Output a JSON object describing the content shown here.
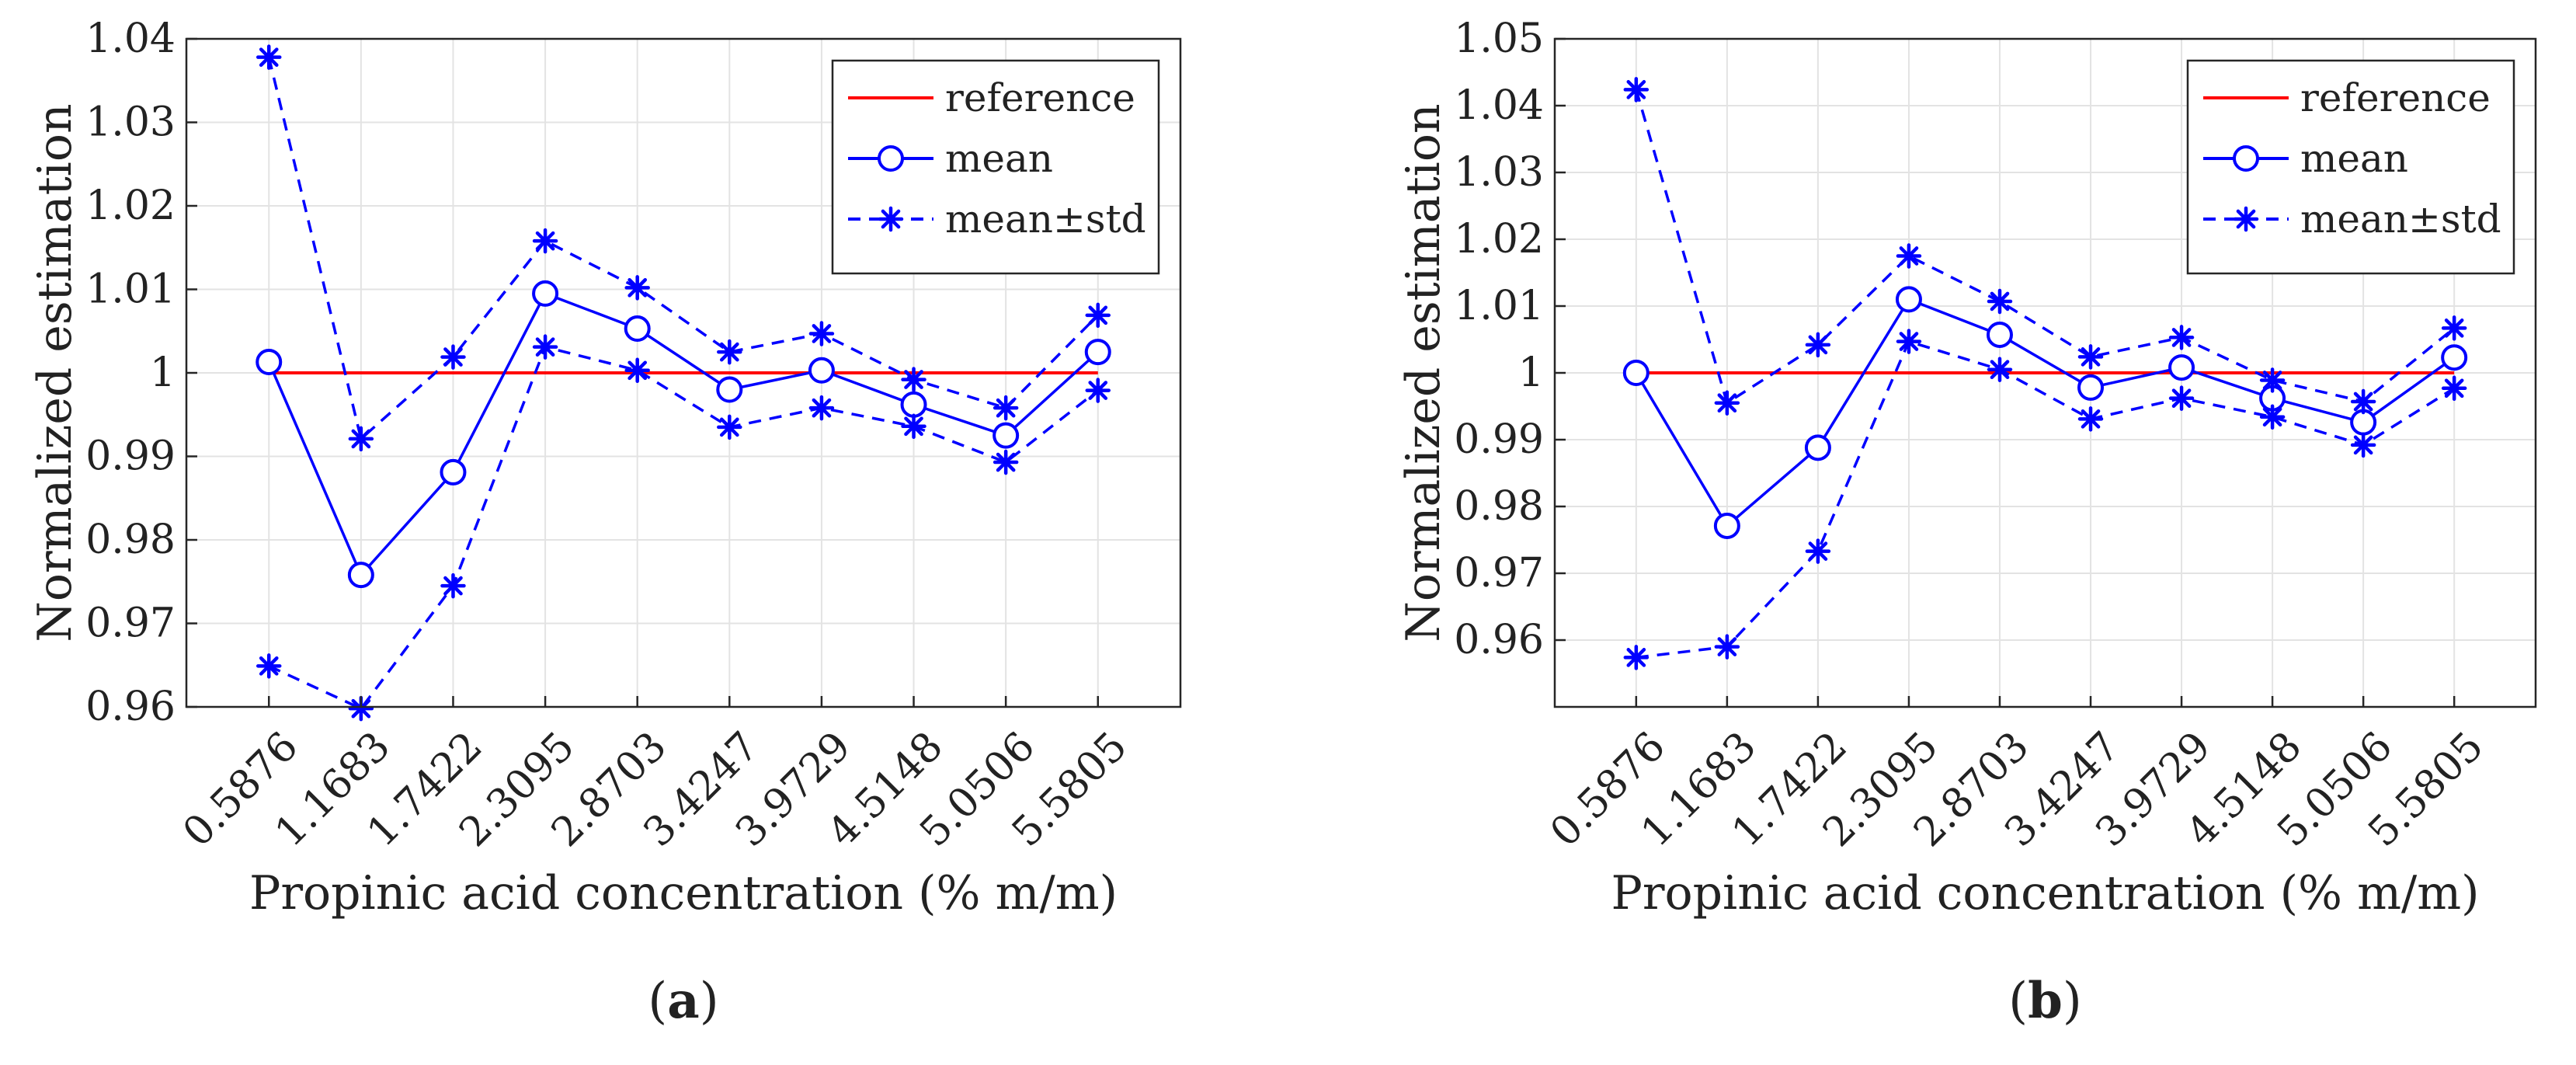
{
  "chart_data": [
    {
      "type": "line",
      "panel_label": "a",
      "panel_tag_prefix": "(",
      "panel_tag_suffix": ")",
      "xlabel": "Propinic acid concentration (% m/m)",
      "ylabel": "Normalized estimation",
      "categories": [
        "0.5876",
        "1.1683",
        "1.7422",
        "2.3095",
        "2.8703",
        "3.4247",
        "3.9729",
        "4.5148",
        "5.0506",
        "5.5805"
      ],
      "ylim": [
        0.96,
        1.04
      ],
      "yticks": [
        0.96,
        0.97,
        0.98,
        0.99,
        1,
        1.01,
        1.02,
        1.03,
        1.04
      ],
      "ytick_labels": [
        "0.96",
        "0.97",
        "0.98",
        "0.99",
        "1",
        "1.01",
        "1.02",
        "1.03",
        "1.04"
      ],
      "grid": true,
      "legend_position": "top-right",
      "series": [
        {
          "name": "reference",
          "color": "#ff0000",
          "line": "solid",
          "marker": "none",
          "values": [
            1,
            1,
            1,
            1,
            1,
            1,
            1,
            1,
            1,
            1
          ]
        },
        {
          "name": "mean",
          "color": "#0000ff",
          "line": "solid",
          "marker": "circle",
          "values": [
            1.0013,
            0.9758,
            0.9881,
            1.0095,
            1.0053,
            0.998,
            1.0003,
            0.9962,
            0.9925,
            1.0025
          ]
        },
        {
          "name": "mean±std",
          "color": "#0000ff",
          "line": "dashed",
          "marker": "asterisk",
          "group": "upper",
          "values": [
            1.0378,
            0.9921,
            1.0019,
            1.0158,
            1.0102,
            1.0025,
            1.0047,
            0.9992,
            0.9958,
            1.0069
          ]
        },
        {
          "name": "",
          "color": "#0000ff",
          "line": "dashed",
          "marker": "asterisk",
          "group": "lower",
          "legend": false,
          "values": [
            0.9649,
            0.9598,
            0.9745,
            1.0031,
            1.0003,
            0.9935,
            0.9958,
            0.9936,
            0.9893,
            0.9979
          ]
        }
      ]
    },
    {
      "type": "line",
      "panel_label": "b",
      "panel_tag_prefix": "(",
      "panel_tag_suffix": ")",
      "xlabel": "Propinic acid concentration (% m/m)",
      "ylabel": "Normalized estimation",
      "categories": [
        "0.5876",
        "1.1683",
        "1.7422",
        "2.3095",
        "2.8703",
        "3.4247",
        "3.9729",
        "4.5148",
        "5.0506",
        "5.5805"
      ],
      "ylim": [
        0.95,
        1.05
      ],
      "yticks": [
        0.96,
        0.97,
        0.98,
        0.99,
        1,
        1.01,
        1.02,
        1.03,
        1.04,
        1.05
      ],
      "ytick_labels": [
        "0.96",
        "0.97",
        "0.98",
        "0.99",
        "1",
        "1.01",
        "1.02",
        "1.03",
        "1.04",
        "1.05"
      ],
      "grid": true,
      "legend_position": "top-right",
      "series": [
        {
          "name": "reference",
          "color": "#ff0000",
          "line": "solid",
          "marker": "none",
          "values": [
            1,
            1,
            1,
            1,
            1,
            1,
            1,
            1,
            1,
            1
          ]
        },
        {
          "name": "mean",
          "color": "#0000ff",
          "line": "solid",
          "marker": "circle",
          "values": [
            1.0,
            0.9771,
            0.9888,
            1.011,
            1.0057,
            0.9978,
            1.0008,
            0.9962,
            0.9926,
            1.0023
          ]
        },
        {
          "name": "mean±std",
          "color": "#0000ff",
          "line": "dashed",
          "marker": "asterisk",
          "group": "upper",
          "values": [
            1.0424,
            0.9955,
            1.0042,
            1.0175,
            1.0107,
            1.0024,
            1.0053,
            0.9989,
            0.9957,
            1.0067
          ]
        },
        {
          "name": "",
          "color": "#0000ff",
          "line": "dashed",
          "marker": "asterisk",
          "group": "lower",
          "legend": false,
          "values": [
            0.9574,
            0.959,
            0.9733,
            1.0047,
            1.0005,
            0.9931,
            0.9962,
            0.9934,
            0.9892,
            0.9977
          ]
        }
      ]
    }
  ]
}
